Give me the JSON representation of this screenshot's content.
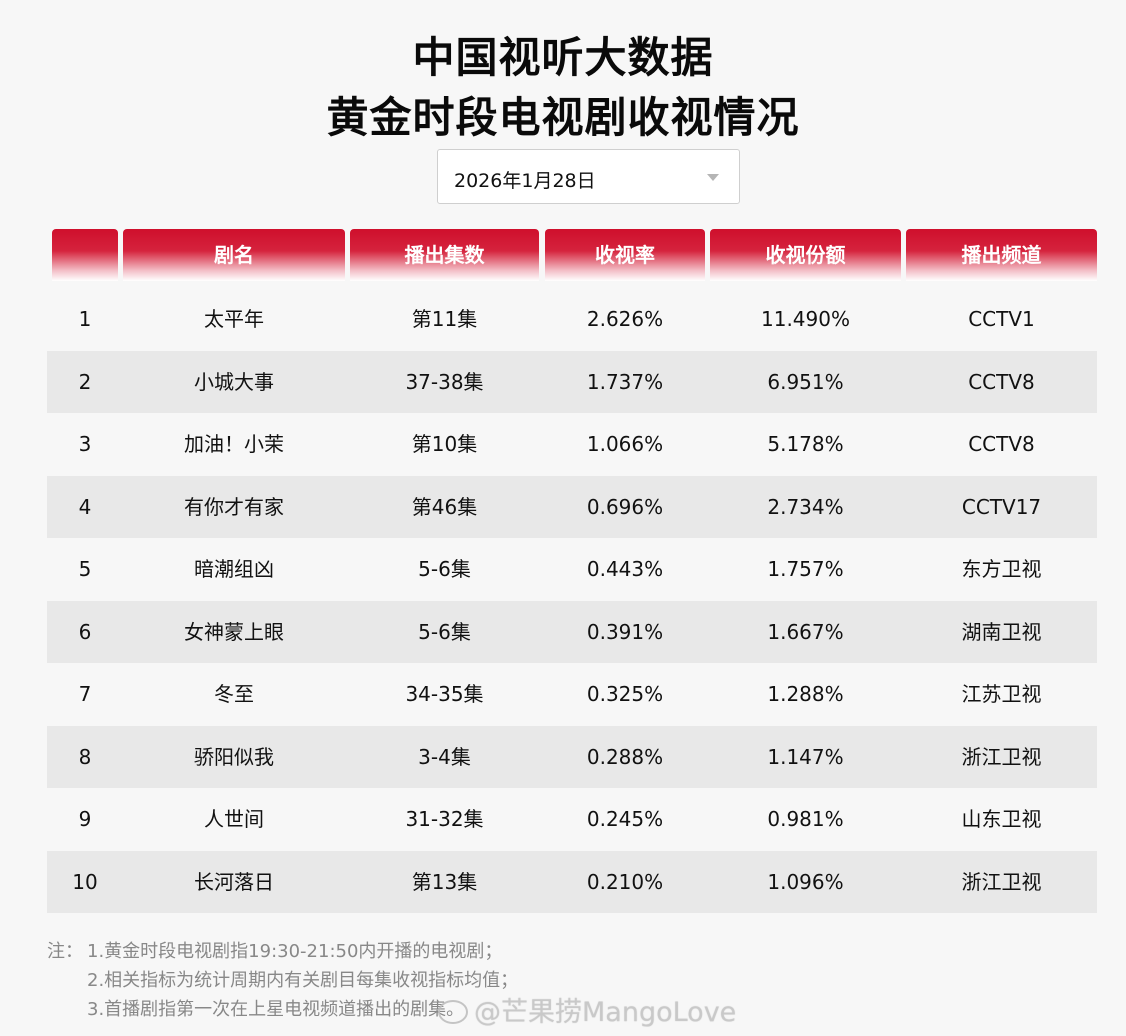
{
  "title_line1": "中国视听大数据",
  "title_line2": "黄金时段电视剧收视情况",
  "date_select": {
    "value": "2026年1月28日"
  },
  "table": {
    "headers": [
      "",
      "剧名",
      "播出集数",
      "收视率",
      "收视份额",
      "播出频道"
    ],
    "rows": [
      [
        "1",
        "太平年",
        "第11集",
        "2.626%",
        "11.490%",
        "CCTV1"
      ],
      [
        "2",
        "小城大事",
        "37-38集",
        "1.737%",
        "6.951%",
        "CCTV8"
      ],
      [
        "3",
        "加油！小茉",
        "第10集",
        "1.066%",
        "5.178%",
        "CCTV8"
      ],
      [
        "4",
        "有你才有家",
        "第46集",
        "0.696%",
        "2.734%",
        "CCTV17"
      ],
      [
        "5",
        "暗潮组凶",
        "5-6集",
        "0.443%",
        "1.757%",
        "东方卫视"
      ],
      [
        "6",
        "女神蒙上眼",
        "5-6集",
        "0.391%",
        "1.667%",
        "湖南卫视"
      ],
      [
        "7",
        "冬至",
        "34-35集",
        "0.325%",
        "1.288%",
        "江苏卫视"
      ],
      [
        "8",
        "骄阳似我",
        "3-4集",
        "0.288%",
        "1.147%",
        "浙江卫视"
      ],
      [
        "9",
        "人世间",
        "31-32集",
        "0.245%",
        "0.981%",
        "山东卫视"
      ],
      [
        "10",
        "长河落日",
        "第13集",
        "0.210%",
        "1.096%",
        "浙江卫视"
      ]
    ]
  },
  "notes": {
    "prefix": "注：",
    "lines": [
      "1.黄金时段电视剧指19:30-21:50内开播的电视剧；",
      "2.相关指标为统计周期内有关剧目每集收视指标均值；",
      "3.首播剧指第一次在上星电视频道播出的剧集。"
    ]
  },
  "watermark": "@芒果捞MangoLove",
  "colors": {
    "header_red": "#d0102e",
    "row_alt": "#e8e8e8",
    "page_bg": "#f7f7f7"
  }
}
